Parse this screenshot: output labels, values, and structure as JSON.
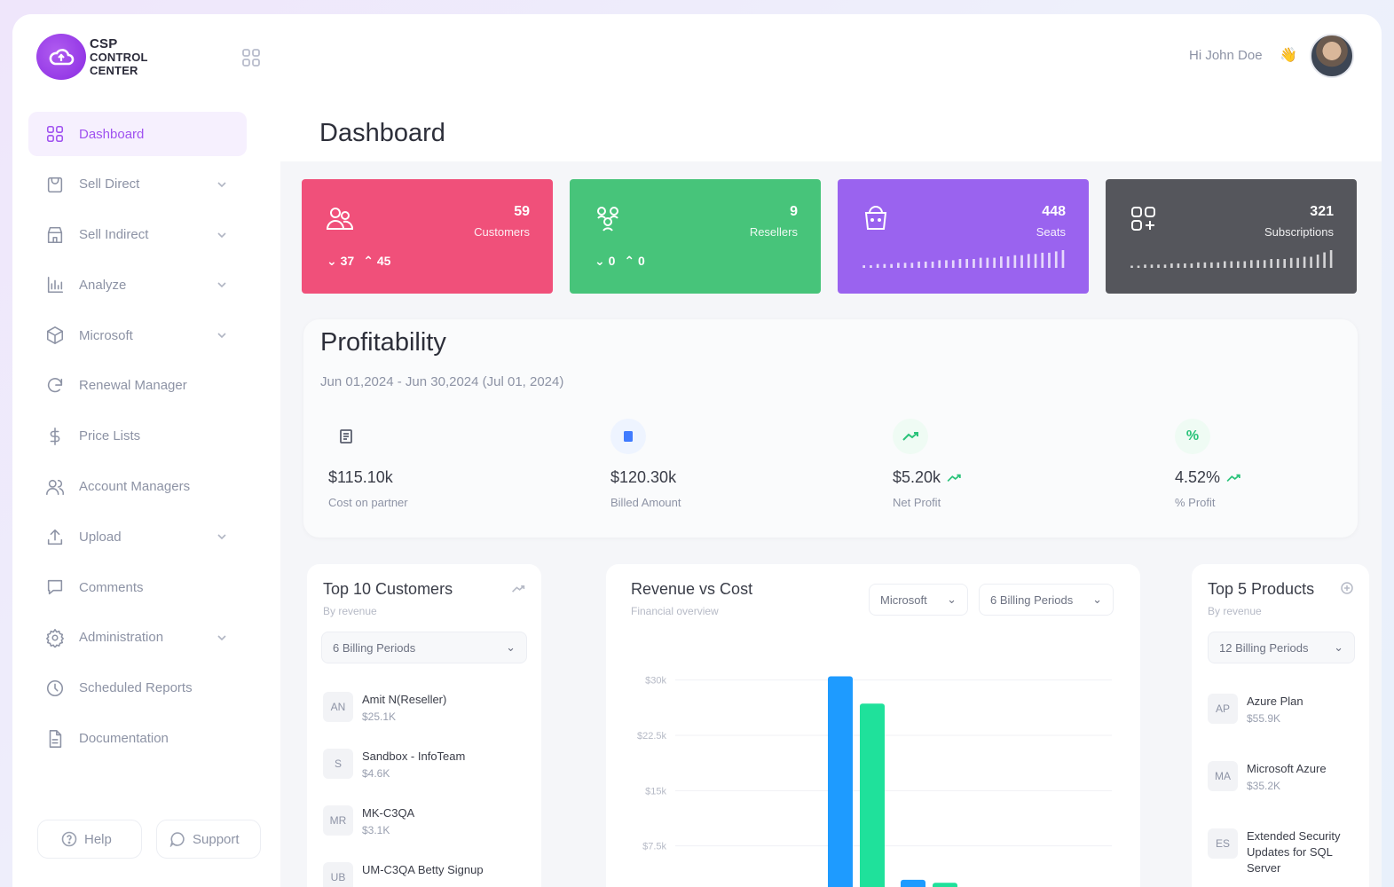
{
  "app": {
    "logo_line1": "CSP",
    "logo_line2": "CONTROL",
    "logo_line3": "CENTER"
  },
  "header": {
    "greeting": "Hi John Doe",
    "wave": "👋"
  },
  "page": {
    "title": "Dashboard"
  },
  "sidebar": {
    "items": [
      {
        "label": "Dashboard",
        "icon": "dashboard-icon",
        "active": true
      },
      {
        "label": "Sell Direct",
        "icon": "cart-icon",
        "dropdown": true
      },
      {
        "label": "Sell Indirect",
        "icon": "store-icon",
        "dropdown": true
      },
      {
        "label": "Analyze",
        "icon": "bar-chart-icon",
        "dropdown": true
      },
      {
        "label": "Microsoft",
        "icon": "cube-icon",
        "dropdown": true
      },
      {
        "label": "Renewal Manager",
        "icon": "refresh-icon"
      },
      {
        "label": "Price Lists",
        "icon": "dollar-icon"
      },
      {
        "label": "Account Managers",
        "icon": "users-icon"
      },
      {
        "label": "Upload",
        "icon": "upload-icon",
        "dropdown": true
      },
      {
        "label": "Comments",
        "icon": "comment-icon"
      },
      {
        "label": "Administration",
        "icon": "gear-icon",
        "dropdown": true
      },
      {
        "label": "Scheduled Reports",
        "icon": "clock-icon"
      },
      {
        "label": "Documentation",
        "icon": "document-icon"
      }
    ],
    "help_label": "Help",
    "support_label": "Support"
  },
  "stats": {
    "customers": {
      "value": "59",
      "label": "Customers",
      "down": "37",
      "up": "45",
      "color": "#f0507a"
    },
    "resellers": {
      "value": "9",
      "label": "Resellers",
      "down": "0",
      "up": "0",
      "color": "#47c47a"
    },
    "seats": {
      "value": "448",
      "label": "Seats",
      "color": "#9a63ef",
      "bars": [
        2,
        2,
        3,
        3,
        3,
        4,
        4,
        4,
        5,
        5,
        5,
        6,
        6,
        6,
        7,
        7,
        7,
        8,
        8,
        8,
        9,
        9,
        10,
        10,
        11,
        11,
        12,
        12,
        13,
        14
      ]
    },
    "subscriptions": {
      "value": "321",
      "label": "Subscriptions",
      "color": "#55565c",
      "bars": [
        2,
        2,
        3,
        3,
        3,
        3,
        4,
        4,
        4,
        4,
        5,
        5,
        5,
        5,
        6,
        6,
        6,
        6,
        7,
        7,
        7,
        8,
        8,
        8,
        9,
        9,
        10,
        10,
        12,
        14,
        16
      ]
    }
  },
  "profitability": {
    "title": "Profitability",
    "range": "Jun 01,2024 - Jun 30,2024 (Jul 01, 2024)",
    "metrics": [
      {
        "value": "$115.10k",
        "label": "Cost on partner",
        "icon": "receipt-icon"
      },
      {
        "value": "$120.30k",
        "label": "Billed Amount",
        "icon": "bill-icon"
      },
      {
        "value": "$5.20k",
        "label": "Net Profit",
        "icon": "trend-up-icon"
      },
      {
        "value": "4.52%",
        "label": "% Profit",
        "icon": "percent-icon"
      }
    ]
  },
  "top_customers": {
    "title": "Top 10 Customers",
    "subtitle": "By revenue",
    "select": "6 Billing Periods",
    "items": [
      {
        "initials": "AN",
        "name": "Amit N(Reseller)",
        "amount": "$25.1K"
      },
      {
        "initials": "S",
        "name": "Sandbox - InfoTeam",
        "amount": "$4.6K"
      },
      {
        "initials": "MR",
        "name": "MK-C3QA",
        "amount": "$3.1K"
      },
      {
        "initials": "UB",
        "name": "UM-C3QA Betty Signup",
        "amount": ""
      }
    ]
  },
  "revenue_cost": {
    "title": "Revenue vs Cost",
    "subtitle": "Financial overview",
    "select_vendor": "Microsoft",
    "select_period": "6 Billing Periods",
    "chart_data": {
      "type": "bar",
      "yticks": [
        "$30k",
        "$22.5k",
        "$15k",
        "$7.5k"
      ],
      "ylim": [
        0,
        32000
      ],
      "series": [
        {
          "values": [
            null,
            30500,
            2900
          ],
          "color": "#1e9bff"
        },
        {
          "values": [
            null,
            26800,
            2500
          ],
          "color": "#1fe19b"
        }
      ]
    }
  },
  "top_products": {
    "title": "Top 5 Products",
    "subtitle": "By revenue",
    "select": "12 Billing Periods",
    "items": [
      {
        "initials": "AP",
        "name": "Azure Plan",
        "amount": "$55.9K"
      },
      {
        "initials": "MA",
        "name": "Microsoft Azure",
        "amount": "$35.2K"
      },
      {
        "initials": "ES",
        "name": "Extended Security Updates for SQL Server",
        "amount": ""
      }
    ]
  }
}
